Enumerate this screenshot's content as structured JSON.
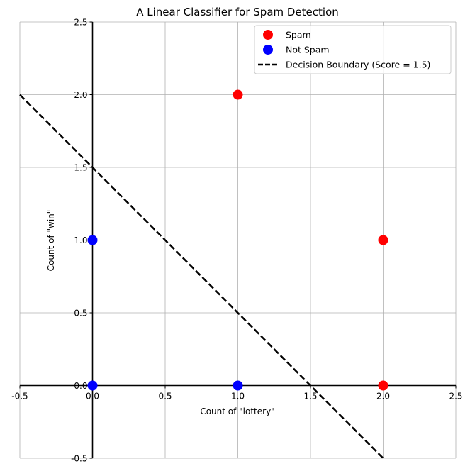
{
  "chart_data": {
    "type": "scatter",
    "title": "A Linear Classifier for Spam Detection",
    "xlabel": "Count of \"lottery\"",
    "ylabel": "Count of \"win\"",
    "xlim": [
      -0.5,
      2.5
    ],
    "ylim": [
      -0.5,
      2.5
    ],
    "xticks": [
      -0.5,
      0.0,
      0.5,
      1.0,
      1.5,
      2.0,
      2.5
    ],
    "yticks": [
      -0.5,
      0.0,
      0.5,
      1.0,
      1.5,
      2.0,
      2.5
    ],
    "grid": true,
    "legend_position": "top-right",
    "series": [
      {
        "name": "Spam",
        "color": "#ff0000",
        "kind": "scatter",
        "points": [
          {
            "x": 1,
            "y": 2
          },
          {
            "x": 2,
            "y": 1
          },
          {
            "x": 2,
            "y": 0
          }
        ]
      },
      {
        "name": "Not Spam",
        "color": "#0000ff",
        "kind": "scatter",
        "points": [
          {
            "x": 0,
            "y": 0
          },
          {
            "x": 0,
            "y": 1
          },
          {
            "x": 1,
            "y": 0
          }
        ]
      },
      {
        "name": "Decision Boundary (Score = 1.5)",
        "color": "#000000",
        "kind": "dashed-line",
        "points": [
          {
            "x": -0.5,
            "y": 2.0
          },
          {
            "x": 2.0,
            "y": -0.5
          }
        ]
      }
    ]
  }
}
